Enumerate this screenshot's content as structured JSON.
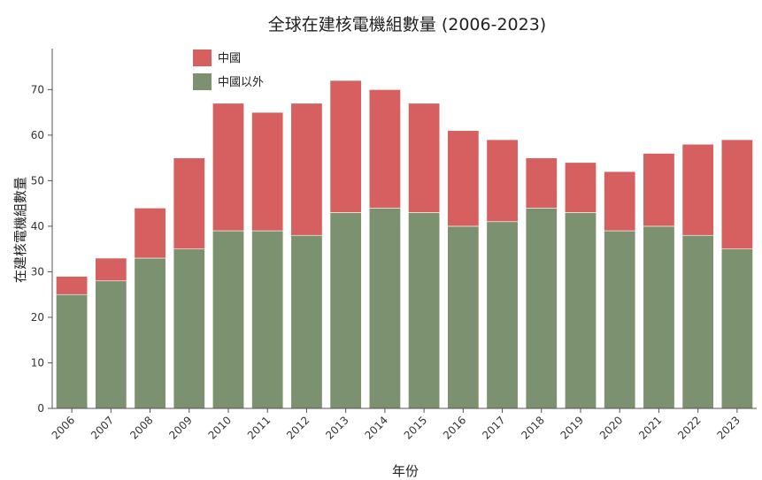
{
  "chart_data": {
    "type": "bar",
    "stacked": true,
    "title": "全球在建核電機組數量 (2006-2023)",
    "xlabel": "年份",
    "ylabel": "在建核電機組數量",
    "categories": [
      "2006",
      "2007",
      "2008",
      "2009",
      "2010",
      "2011",
      "2012",
      "2013",
      "2014",
      "2015",
      "2016",
      "2017",
      "2018",
      "2019",
      "2020",
      "2021",
      "2022",
      "2023"
    ],
    "series": [
      {
        "name": "中國以外",
        "color": "#7b9170",
        "values": [
          25,
          28,
          33,
          35,
          39,
          39,
          38,
          43,
          44,
          43,
          40,
          41,
          44,
          43,
          39,
          40,
          38,
          35
        ]
      },
      {
        "name": "中國",
        "color": "#d65f5f",
        "values": [
          4,
          5,
          11,
          20,
          28,
          26,
          29,
          29,
          26,
          24,
          21,
          18,
          11,
          11,
          13,
          16,
          20,
          24
        ]
      }
    ],
    "ylim": [
      0,
      79
    ],
    "yticks": [
      0,
      10,
      20,
      30,
      40,
      50,
      60,
      70
    ],
    "legend": {
      "position": "top-left",
      "order": [
        "中國",
        "中國以外"
      ]
    },
    "grid": false
  }
}
